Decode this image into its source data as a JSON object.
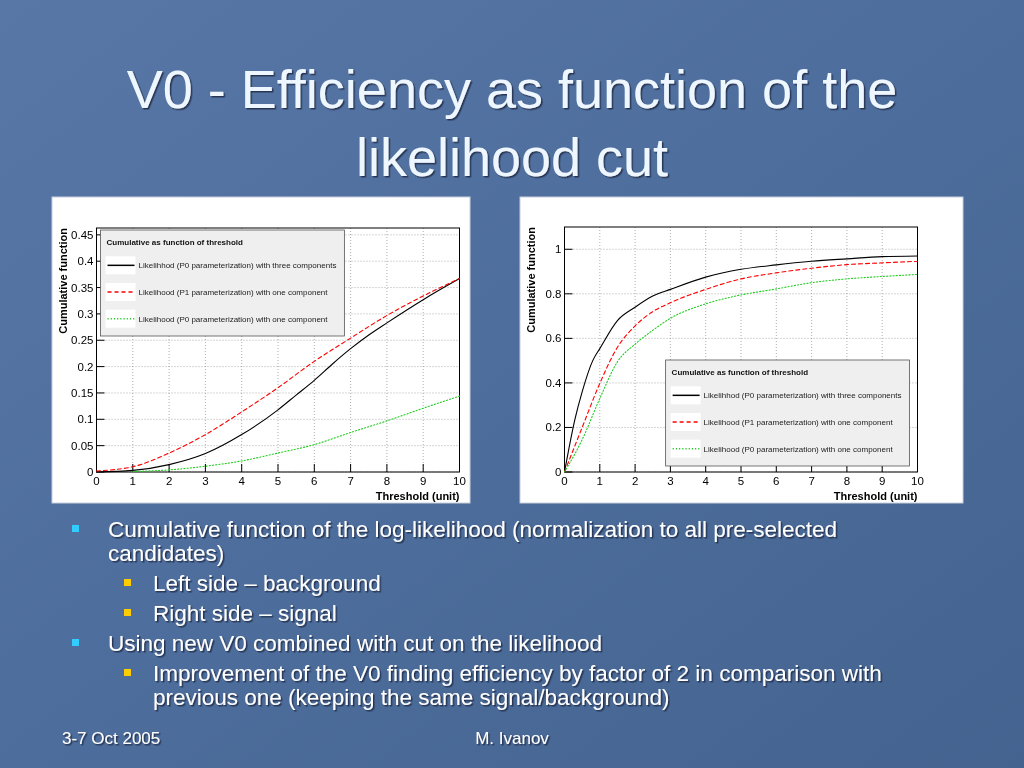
{
  "chart_data": [
    {
      "type": "other",
      "title": "V0 - Efficiency as function of the likelihood cut",
      "annotations": [
        "Cumulative function of the log-likelihood (normalization to all pre-selected candidates)",
        "Left side – background",
        "Right side – signal",
        "Using new V0 combined with cut on the likelihood",
        "Improvement of the V0 finding efficiency by factor of 2 in comparison with previous one (keeping the same signal/background)",
        "3-7 Oct 2005",
        "M. Ivanov"
      ]
    },
    {
      "type": "line",
      "xlabel": "Threshold (unit)",
      "ylabel": "Cumulative function",
      "legend_title": "Cumulative as function of threshold",
      "xlim": [
        0,
        10
      ],
      "ylim": [
        0,
        0.463
      ],
      "xticks": [
        0,
        1,
        2,
        3,
        4,
        5,
        6,
        7,
        8,
        9,
        10
      ],
      "yticks": [
        0,
        0.05,
        0.1,
        0.15,
        0.2,
        0.25,
        0.3,
        0.35,
        0.4,
        0.45
      ],
      "grid": true,
      "legend": "top left",
      "marker": "none",
      "series": [
        {
          "name": "Likelihhod (P0 parameterization) with three components",
          "color": "#000000",
          "line_style": "solid",
          "x": [
            0,
            1,
            2,
            3,
            4,
            5,
            5.5,
            6,
            6.5,
            7,
            7.5,
            8,
            9,
            10
          ],
          "values": [
            0,
            0.003,
            0.014,
            0.035,
            0.071,
            0.118,
            0.146,
            0.174,
            0.205,
            0.234,
            0.26,
            0.283,
            0.327,
            0.367
          ]
        },
        {
          "name": "Likelihood (P1 parameterization) with one component",
          "color": "#ff0000",
          "line_style": "dashed",
          "x": [
            0,
            1,
            2,
            3,
            4,
            5,
            6,
            7,
            8,
            9,
            10
          ],
          "values": [
            0.002,
            0.01,
            0.036,
            0.071,
            0.114,
            0.16,
            0.21,
            0.254,
            0.297,
            0.334,
            0.367
          ]
        },
        {
          "name": "Likelihood (P0 parameterization) with one component",
          "color": "#22cc22",
          "line_style": "dotted",
          "x": [
            1,
            2,
            3,
            4,
            5,
            6,
            7,
            8,
            9,
            10
          ],
          "values": [
            0.001,
            0.004,
            0.011,
            0.021,
            0.036,
            0.052,
            0.075,
            0.097,
            0.121,
            0.144
          ]
        }
      ]
    },
    {
      "type": "line",
      "xlabel": "Threshold (unit)",
      "ylabel": "Cumulative function",
      "legend_title": "Cumulative as function of threshold",
      "xlim": [
        0,
        10
      ],
      "ylim": [
        0,
        1.1
      ],
      "xticks": [
        0,
        1,
        2,
        3,
        4,
        5,
        6,
        7,
        8,
        9,
        10
      ],
      "yticks": [
        0,
        0.2,
        0.4,
        0.6,
        0.8,
        1
      ],
      "grid": true,
      "legend": "bottom right",
      "marker": "none",
      "series": [
        {
          "name": "Likelihhod (P0 parameterization) with three components",
          "color": "#000000",
          "line_style": "solid",
          "x": [
            0,
            0.3,
            0.5,
            0.8,
            1,
            1.5,
            2,
            2.5,
            3,
            4,
            5,
            6,
            7,
            8,
            9,
            10
          ],
          "values": [
            0,
            0.24,
            0.36,
            0.5,
            0.554,
            0.68,
            0.74,
            0.79,
            0.82,
            0.875,
            0.91,
            0.93,
            0.946,
            0.957,
            0.967,
            0.97
          ]
        },
        {
          "name": "Likelihood (P1 parameterization) with one component",
          "color": "#ff0000",
          "line_style": "dashed",
          "x": [
            0,
            0.5,
            1,
            1.5,
            2,
            2.5,
            3,
            4,
            5,
            6,
            7,
            8,
            9,
            10
          ],
          "values": [
            0,
            0.2,
            0.398,
            0.56,
            0.656,
            0.72,
            0.76,
            0.82,
            0.867,
            0.894,
            0.915,
            0.931,
            0.939,
            0.946
          ]
        },
        {
          "name": "Likelihood (P0 parameterization) with one component",
          "color": "#22cc22",
          "line_style": "dotted",
          "x": [
            0,
            0.5,
            1,
            1.5,
            2,
            2.5,
            3,
            4,
            5,
            6,
            7,
            8,
            9,
            10
          ],
          "values": [
            0,
            0.145,
            0.33,
            0.495,
            0.574,
            0.636,
            0.69,
            0.755,
            0.795,
            0.822,
            0.85,
            0.867,
            0.878,
            0.887
          ]
        }
      ]
    }
  ]
}
